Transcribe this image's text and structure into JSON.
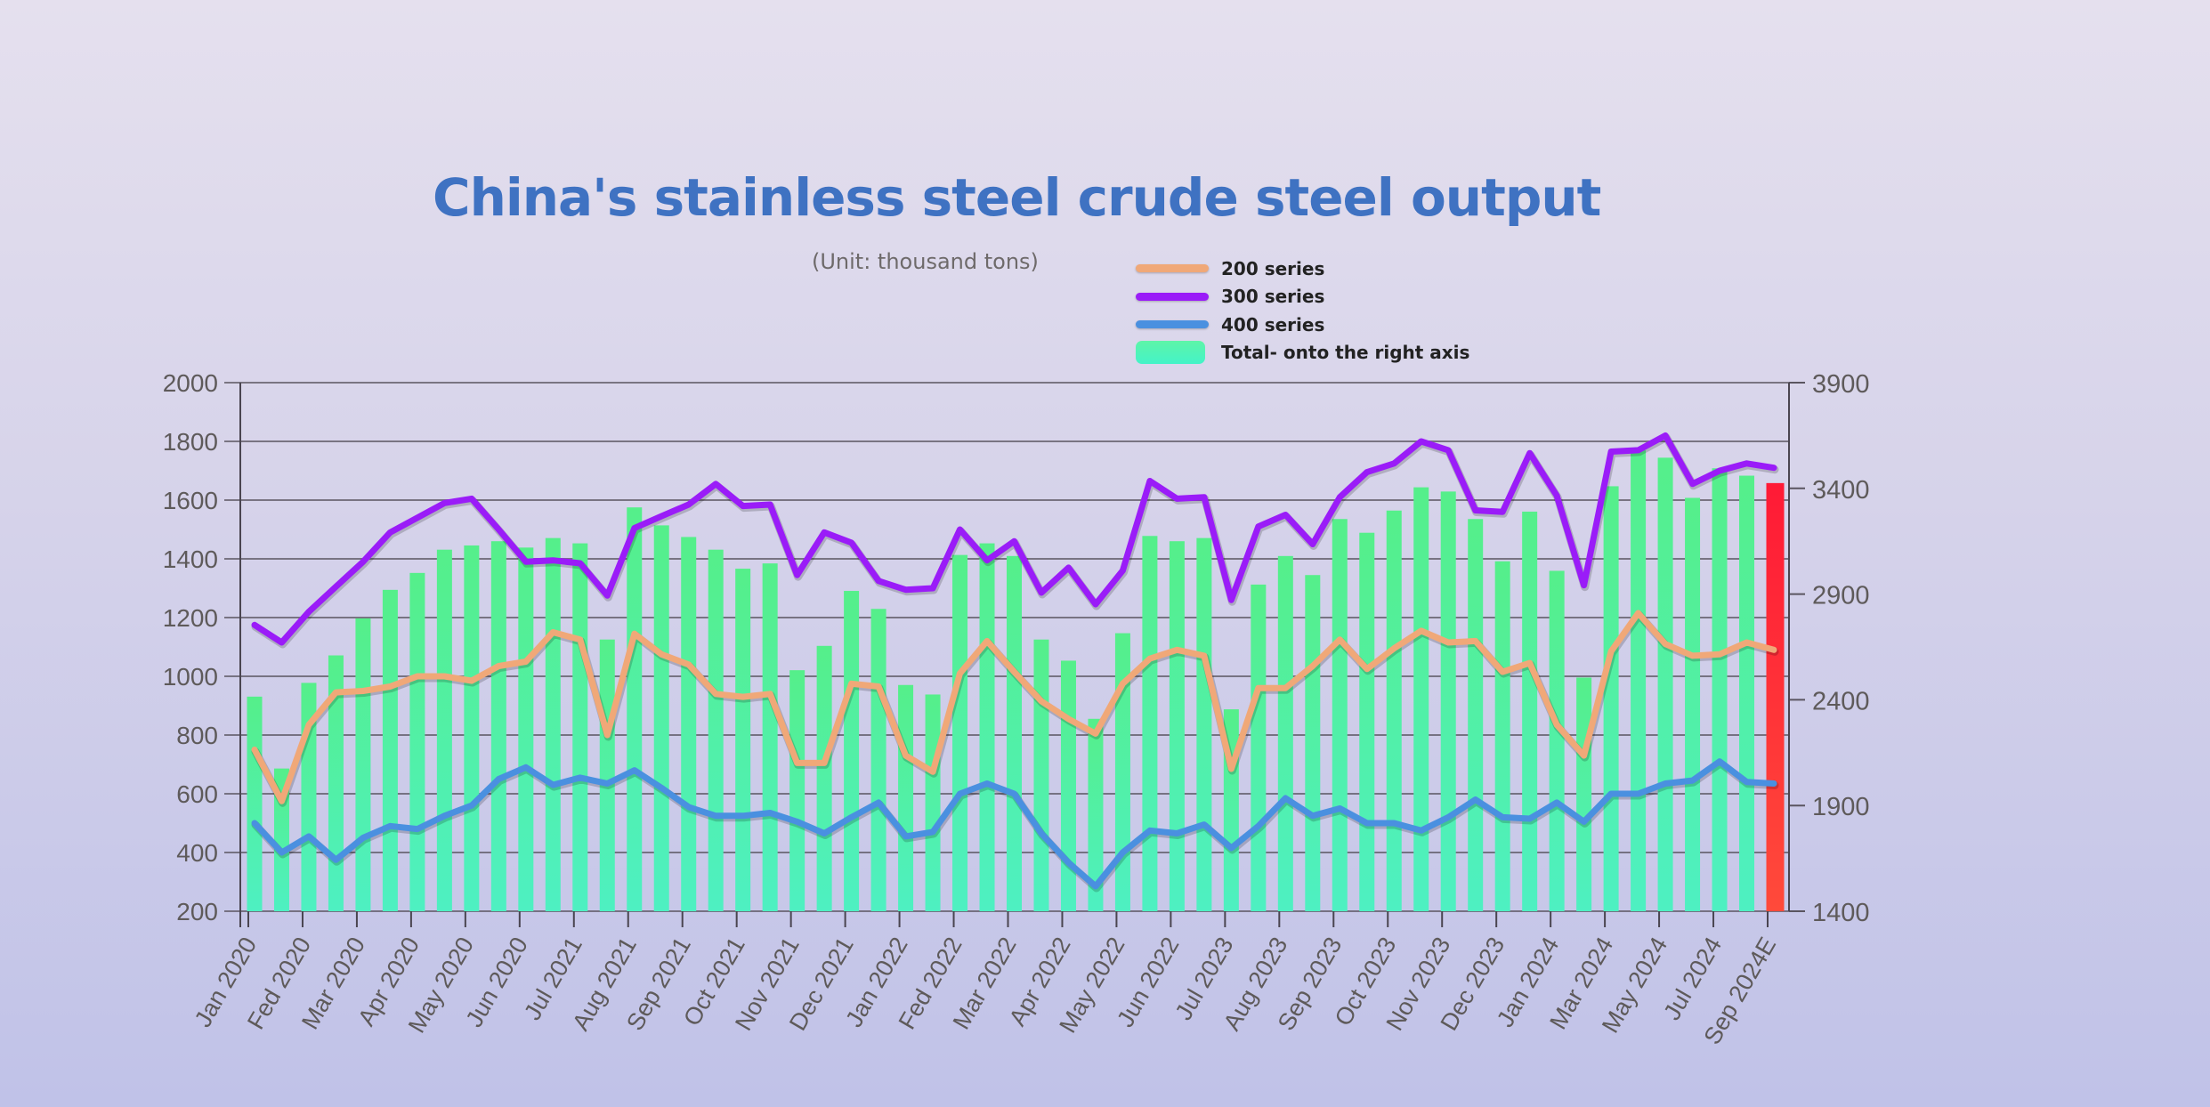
{
  "chart_data": {
    "type": "bar+line",
    "title": "China's stainless steel crude steel output",
    "subtitle": "(Unit: thousand tons)",
    "left_axis": {
      "ylim": [
        200,
        2000
      ],
      "ticks": [
        "2000",
        "1800",
        "1600",
        "1400",
        "1200",
        "1000",
        "800",
        "600",
        "400",
        "200"
      ]
    },
    "right_axis": {
      "ylim": [
        1400,
        3900
      ],
      "ticks": [
        "3900",
        "3400",
        "2900",
        "2400",
        "1900",
        "1400"
      ]
    },
    "grid": true,
    "legend_position": "top-right",
    "x_tick_labels": [
      "Jan 2020",
      "Fed 2020",
      "Mar 2020",
      "Apr 2020",
      "May 2020",
      "Jun 2020",
      "Jul 2021",
      "Aug 2021",
      "Sep 2021",
      "Oct 2021",
      "Nov 2021",
      "Dec 2021",
      "Jan 2022",
      "Fed 2022",
      "Mar 2022",
      "Apr 2022",
      "May 2022",
      "Jun 2022",
      "Jul 2023",
      "Aug 2023",
      "Sep 2023",
      "Oct 2023",
      "Nov 2023",
      "Dec 2023",
      "Jan 2024",
      "Mar 2024",
      "May 2024",
      "Jul 2024",
      "Sep 2024E"
    ],
    "series": [
      {
        "name": "200 series",
        "axis": "left",
        "type": "line",
        "color": "#f0a878",
        "values": [
          750,
          575,
          835,
          945,
          950,
          965,
          1000,
          1000,
          985,
          1035,
          1050,
          1150,
          1125,
          800,
          1145,
          1075,
          1040,
          940,
          930,
          940,
          705,
          705,
          975,
          965,
          730,
          675,
          1010,
          1120,
          1015,
          915,
          855,
          805,
          975,
          1060,
          1090,
          1070,
          685,
          960,
          960,
          1035,
          1125,
          1025,
          1095,
          1155,
          1115,
          1120,
          1015,
          1045,
          835,
          730,
          1085,
          1215,
          1110,
          1070,
          1075,
          1115,
          1090
        ]
      },
      {
        "name": "300 series",
        "axis": "left",
        "type": "line",
        "color": "#9a1cf8",
        "values": [
          1175,
          1115,
          1220,
          1305,
          1390,
          1490,
          1540,
          1590,
          1605,
          1500,
          1390,
          1395,
          1385,
          1275,
          1505,
          1545,
          1585,
          1655,
          1580,
          1585,
          1345,
          1490,
          1455,
          1325,
          1295,
          1300,
          1500,
          1395,
          1460,
          1285,
          1370,
          1245,
          1360,
          1665,
          1605,
          1610,
          1260,
          1510,
          1550,
          1450,
          1610,
          1695,
          1725,
          1800,
          1770,
          1565,
          1560,
          1760,
          1615,
          1310,
          1765,
          1770,
          1820,
          1655,
          1700,
          1725,
          1710
        ]
      },
      {
        "name": "400 series",
        "axis": "left",
        "type": "line",
        "color": "#4a90e0",
        "values": [
          500,
          400,
          455,
          375,
          450,
          490,
          480,
          525,
          560,
          650,
          690,
          630,
          655,
          635,
          680,
          620,
          555,
          525,
          525,
          535,
          505,
          465,
          520,
          570,
          455,
          470,
          600,
          635,
          600,
          465,
          365,
          285,
          400,
          475,
          465,
          495,
          415,
          490,
          585,
          525,
          550,
          500,
          500,
          475,
          520,
          580,
          520,
          515,
          570,
          505,
          600,
          600,
          635,
          645,
          710,
          640,
          635
        ]
      },
      {
        "name": "Total- onto the right axis",
        "axis": "right",
        "type": "bar",
        "color": "#4ef0b0",
        "last_bar_color": "#ff2a36",
        "values": [
          2415,
          2075,
          2480,
          2610,
          2785,
          2920,
          3000,
          3110,
          3130,
          3150,
          3120,
          3165,
          3140,
          2685,
          3310,
          3225,
          3170,
          3110,
          3020,
          3045,
          2540,
          2655,
          2915,
          2830,
          2470,
          2425,
          3085,
          3140,
          3080,
          2685,
          2585,
          2310,
          2715,
          3175,
          3150,
          3165,
          2355,
          2945,
          3080,
          2990,
          3255,
          3190,
          3295,
          3405,
          3385,
          3255,
          3055,
          3290,
          3010,
          2505,
          3410,
          3580,
          3545,
          3355,
          3495,
          3460,
          3425
        ]
      }
    ]
  }
}
